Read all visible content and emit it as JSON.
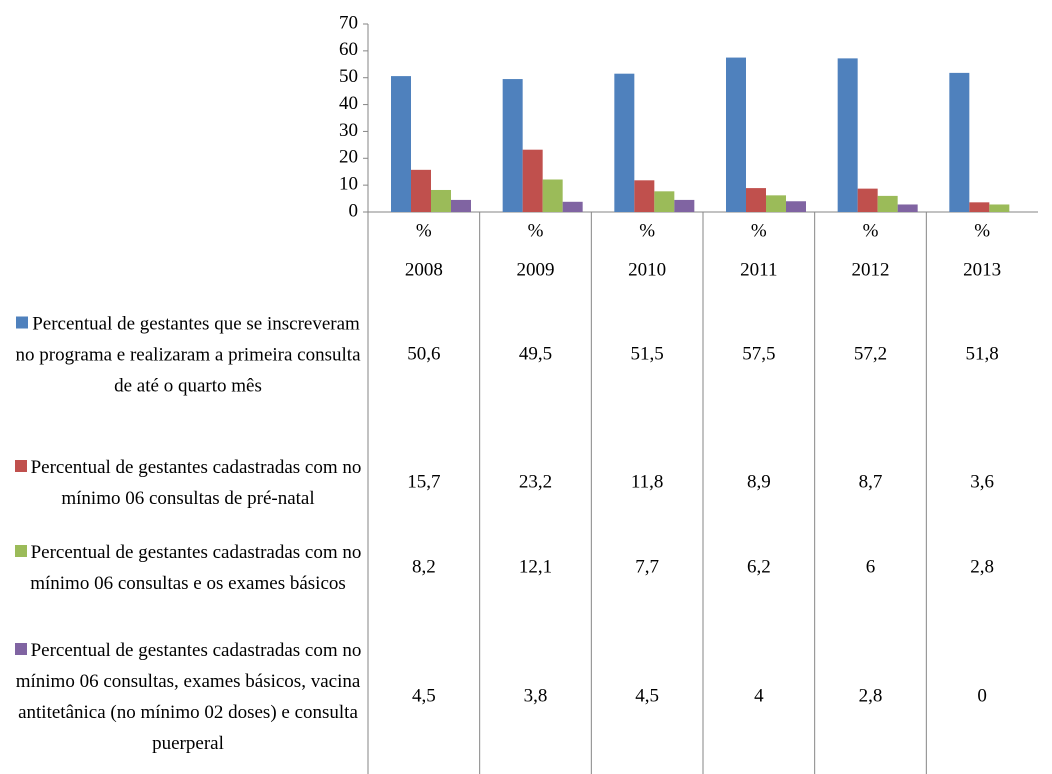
{
  "chart_data": {
    "type": "bar",
    "categories": [
      [
        "%",
        "2008"
      ],
      [
        "%",
        "2009"
      ],
      [
        "%",
        "2010"
      ],
      [
        "%",
        "2011"
      ],
      [
        "%",
        "2012"
      ],
      [
        "%",
        "2013"
      ]
    ],
    "ylim": [
      0,
      70
    ],
    "yticks": [
      0,
      10,
      20,
      30,
      40,
      50,
      60,
      70
    ],
    "series": [
      {
        "name": "Percentual de gestantes que se inscreveram no programa e realizaram a primeira consulta de até o quarto mês",
        "color": "#4f81bd",
        "values": [
          50.6,
          49.5,
          51.5,
          57.5,
          57.2,
          51.8
        ],
        "value_labels": [
          "50,6",
          "49,5",
          "51,5",
          "57,5",
          "57,2",
          "51,8"
        ]
      },
      {
        "name": "Percentual de gestantes cadastradas com no mínimo 06 consultas de pré-natal",
        "color": "#c0504d",
        "values": [
          15.7,
          23.2,
          11.8,
          8.9,
          8.7,
          3.6
        ],
        "value_labels": [
          "15,7",
          "23,2",
          "11,8",
          "8,9",
          "8,7",
          "3,6"
        ]
      },
      {
        "name": "Percentual de gestantes cadastradas com no mínimo 06 consultas e os exames básicos",
        "color": "#9bbb59",
        "values": [
          8.2,
          12.1,
          7.7,
          6.2,
          6,
          2.8
        ],
        "value_labels": [
          "8,2",
          "12,1",
          "7,7",
          "6,2",
          "6",
          "2,8"
        ]
      },
      {
        "name": "Percentual de gestantes cadastradas com no mínimo 06 consultas, exames básicos, vacina antitetânica (no mínimo 02 doses) e consulta puerperal",
        "color": "#8064a2",
        "values": [
          4.5,
          3.8,
          4.5,
          4,
          2.8,
          0
        ],
        "value_labels": [
          "4,5",
          "3,8",
          "4,5",
          "4",
          "2,8",
          "0"
        ]
      }
    ]
  }
}
